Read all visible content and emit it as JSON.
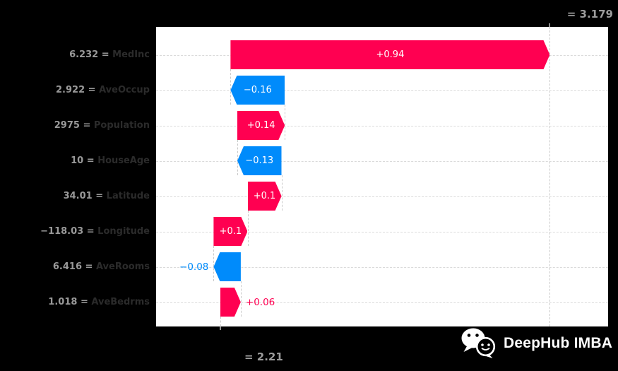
{
  "chart_data": {
    "type": "waterfall",
    "subtype": "shap-waterfall",
    "background": "#000000",
    "plot_background": "#ffffff",
    "grid": true,
    "base_value": 2.21,
    "base_value_label": "= 2.21",
    "fx_value": 3.179,
    "fx_value_label": "= 3.179",
    "separator": " = ",
    "colors": {
      "positive": "#ff0051",
      "negative": "#008bfb"
    },
    "features": [
      {
        "name": "MedInc",
        "value_label": "6.232",
        "shap": 0.94,
        "shap_label": "+0.94"
      },
      {
        "name": "AveOccup",
        "value_label": "2.922",
        "shap": -0.16,
        "shap_label": "−0.16"
      },
      {
        "name": "Population",
        "value_label": "2975",
        "shap": 0.14,
        "shap_label": "+0.14"
      },
      {
        "name": "HouseAge",
        "value_label": "10",
        "shap": -0.13,
        "shap_label": "−0.13"
      },
      {
        "name": "Latitude",
        "value_label": "34.01",
        "shap": 0.1,
        "shap_label": "+0.1"
      },
      {
        "name": "Longitude",
        "value_label": "−118.03",
        "shap": 0.1,
        "shap_label": "+0.1"
      },
      {
        "name": "AveRooms",
        "value_label": "6.416",
        "shap": -0.08,
        "shap_label": "−0.08"
      },
      {
        "name": "AveBedrms",
        "value_label": "1.018",
        "shap": 0.06,
        "shap_label": "+0.06"
      }
    ]
  },
  "watermark": {
    "text": "DeepHub IMBA",
    "icon": "wechat-icon"
  }
}
